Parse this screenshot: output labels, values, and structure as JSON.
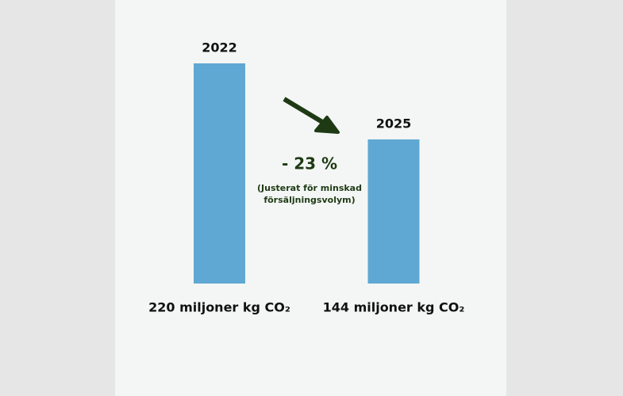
{
  "chart_data": {
    "type": "bar",
    "categories": [
      "2022",
      "2025"
    ],
    "values": [
      220,
      144
    ],
    "value_labels": [
      "220 miljoner kg CO₂",
      "144 miljoner kg CO₂"
    ],
    "color": "#5fa8d3",
    "annotations": [
      "- 23 %",
      "(Justerat för minskad",
      "försäljningsvolym)"
    ]
  }
}
